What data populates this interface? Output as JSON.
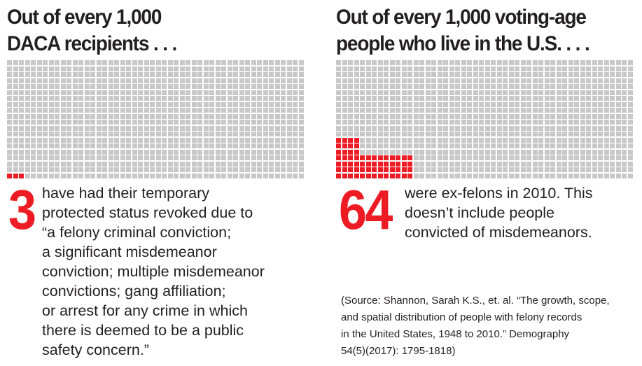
{
  "left": {
    "title_line1": "Out of every 1,000",
    "title_line2": "DACA recipients . . .",
    "total_units": 1000,
    "highlighted_units": 3,
    "number": "3",
    "description_lines": [
      "have had their temporary",
      "protected status revoked due to",
      "“a felony criminal conviction;",
      "a significant misdemeanor",
      "conviction; multiple misdemeanor",
      "convictions; gang affiliation;",
      "or arrest for any crime in which",
      "there is deemed to be a public",
      "safety concern.”"
    ]
  },
  "right": {
    "title_line1": "Out of every 1,000 voting-age",
    "title_line2": "people who live in the U.S. . . .",
    "total_units": 1000,
    "highlighted_units": 64,
    "number": "64",
    "description_lines": [
      "were ex-felons in 2010. This",
      "doesn’t include people",
      "convicted of misdemeanors."
    ]
  },
  "source_lines": [
    "(Source: Shannon, Sarah K.S., et. al. “The growth, scope,",
    "and spatial distribution of people with felony records",
    "in the United States, 1948 to 2010.” Demography",
    "54(5)(2017): 1795-1818)"
  ],
  "colors": {
    "highlight": "#ed1c24",
    "unit": "#c8c8c8",
    "text": "#231f20"
  }
}
